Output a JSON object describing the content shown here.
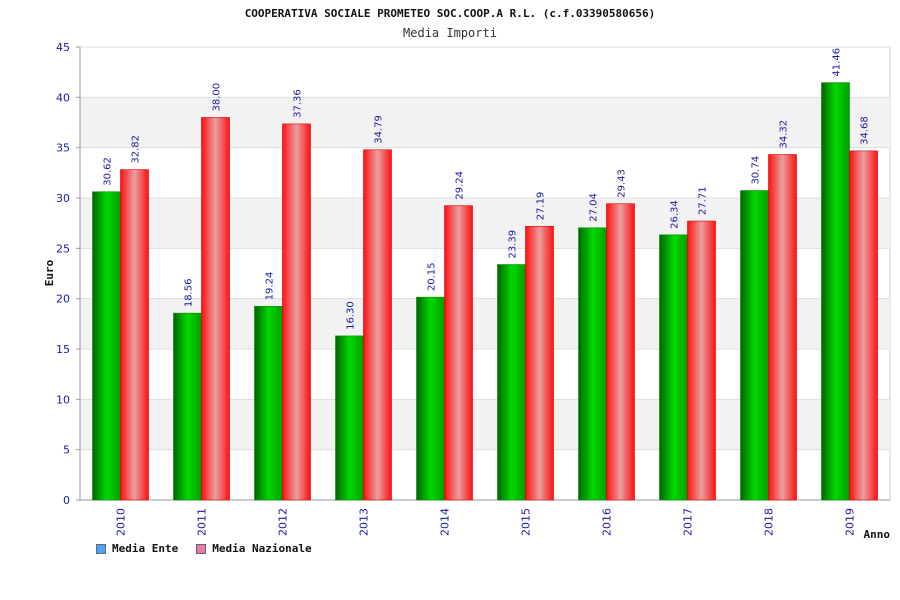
{
  "header": {
    "title": "COOPERATIVA SOCIALE PROMETEO SOC.COOP.A R.L. (c.f.03390580656)",
    "subtitle": "Media Importi"
  },
  "chart_data": {
    "type": "bar",
    "title": "COOPERATIVA SOCIALE PROMETEO SOC.COOP.A R.L. (c.f.03390580656)",
    "subtitle": "Media Importi",
    "xlabel": "Anno",
    "ylabel": "Euro",
    "ylim": [
      0,
      45
    ],
    "yticks": [
      "0",
      "5",
      "10",
      "15",
      "20",
      "25",
      "30",
      "35",
      "40",
      "45"
    ],
    "grid": true,
    "legend_position": "bottom-left",
    "categories": [
      "2010",
      "2011",
      "2012",
      "2013",
      "2014",
      "2015",
      "2016",
      "2017",
      "2018",
      "2019"
    ],
    "series": [
      {
        "name": "Media Ente",
        "color": "#00b000",
        "legend_color": "#4da3ff",
        "values": [
          30.62,
          18.56,
          19.24,
          16.3,
          20.15,
          23.39,
          27.04,
          26.34,
          30.74,
          41.46
        ],
        "labels": [
          "30.62",
          "18.56",
          "19.24",
          "16.30",
          "20.15",
          "23.39",
          "27.04",
          "26.34",
          "30.74",
          "41.46"
        ]
      },
      {
        "name": "Media Nazionale",
        "color": "#ff2020",
        "legend_color": "#e87aa8",
        "values": [
          32.82,
          38.0,
          37.36,
          34.79,
          29.24,
          27.19,
          29.43,
          27.71,
          34.32,
          34.68
        ],
        "labels": [
          "32.82",
          "38.00",
          "37.36",
          "34.79",
          "29.24",
          "27.19",
          "29.43",
          "27.71",
          "34.32",
          "34.68"
        ]
      }
    ]
  }
}
